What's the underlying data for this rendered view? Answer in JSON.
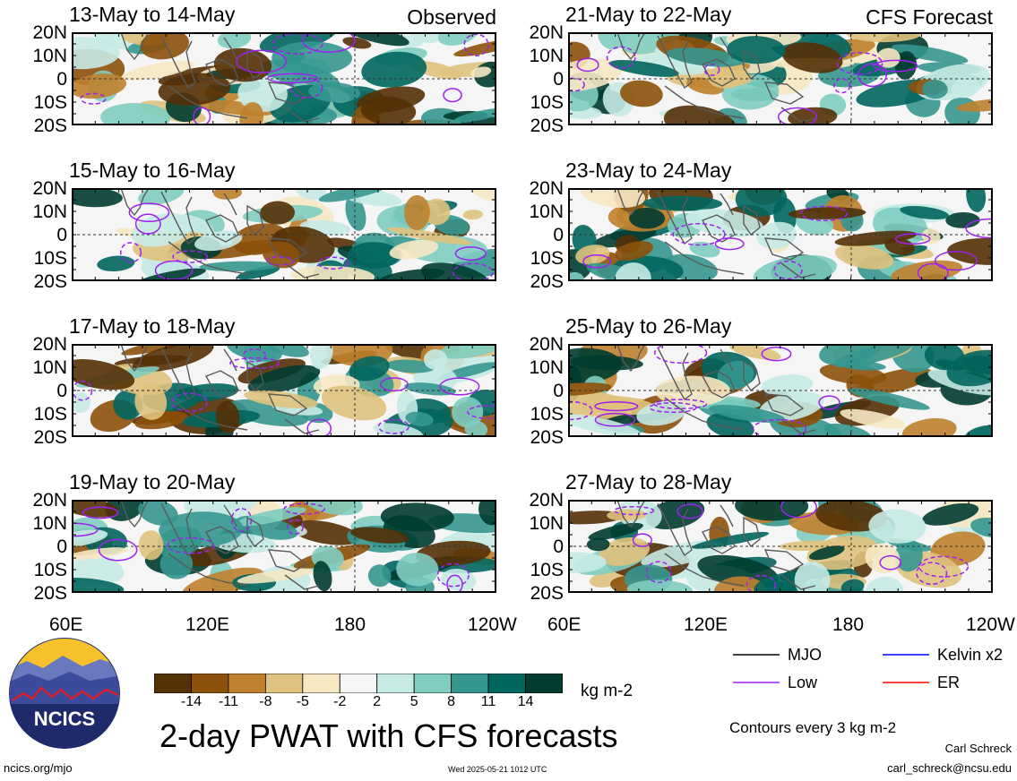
{
  "chart_data": {
    "type": "heatmap",
    "title": "2-day PWAT with CFS forecasts",
    "units": "kg m-2",
    "lat_labels": [
      "20N",
      "10N",
      "0",
      "10S",
      "20S"
    ],
    "lon_labels": [
      "60E",
      "120E",
      "180",
      "120W"
    ],
    "panels": [
      {
        "title": "13-May to 14-May",
        "tag": "Observed",
        "seed": 3
      },
      {
        "title": "15-May to 16-May",
        "tag": "",
        "seed": 7
      },
      {
        "title": "17-May to 18-May",
        "tag": "",
        "seed": 11
      },
      {
        "title": "19-May to 20-May",
        "tag": "",
        "seed": 13
      },
      {
        "title": "21-May to 22-May",
        "tag": "CFS Forecast",
        "seed": 17
      },
      {
        "title": "23-May to 24-May",
        "tag": "",
        "seed": 19
      },
      {
        "title": "25-May to 26-May",
        "tag": "",
        "seed": 23
      },
      {
        "title": "27-May to 28-May",
        "tag": "",
        "seed": 29
      }
    ],
    "colorbar": {
      "labels": [
        "-14",
        "-11",
        "-8",
        "-5",
        "-2",
        "2",
        "5",
        "8",
        "11",
        "14"
      ],
      "colors": [
        "#543005",
        "#8c510a",
        "#bf812d",
        "#dfc27d",
        "#f6e8c3",
        "#f5f5f5",
        "#c7eae5",
        "#80cdc1",
        "#35978f",
        "#01665e",
        "#003c30"
      ]
    },
    "legend": [
      {
        "label": "MJO",
        "color": "#000000"
      },
      {
        "label": "Kelvin x2",
        "color": "#0000ff"
      },
      {
        "label": "Low",
        "color": "#a020f0"
      },
      {
        "label": "ER",
        "color": "#ff0000"
      }
    ],
    "contour_note": "Contours every 3 kg m-2"
  },
  "logo": {
    "text": "NCICS"
  },
  "footer": {
    "url": "ncics.org/mjo",
    "timestamp": "Wed 2025-05-21 1012 UTC",
    "author": "Carl Schreck",
    "email": "carl_schreck@ncsu.edu"
  }
}
